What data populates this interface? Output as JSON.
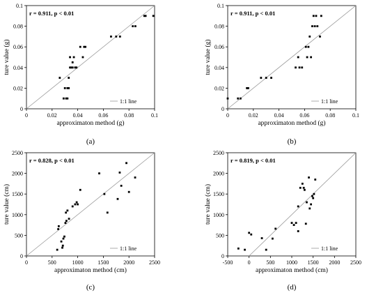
{
  "chart_data": [
    {
      "type": "scatter",
      "caption": "(a)",
      "annotation": "r = 0.911, p < 0.01",
      "legend": "1:1 line",
      "xlabel": "approximaton method (g)",
      "ylabel": "ture value (g)",
      "xlim": [
        0,
        0.1
      ],
      "ylim": [
        0,
        0.1
      ],
      "xticks": [
        "0",
        "0.02",
        "0.04",
        "0.06",
        "0.08",
        "0.1"
      ],
      "yticks": [
        "0",
        "0.02",
        "0.04",
        "0.06",
        "0.08",
        "0.1"
      ],
      "x": [
        0.026,
        0.029,
        0.03,
        0.031,
        0.032,
        0.032,
        0.033,
        0.033,
        0.034,
        0.034,
        0.035,
        0.036,
        0.036,
        0.037,
        0.038,
        0.039,
        0.042,
        0.044,
        0.045,
        0.046,
        0.066,
        0.07,
        0.073,
        0.083,
        0.085,
        0.092,
        0.093,
        0.099
      ],
      "y": [
        0.03,
        0.01,
        0.02,
        0.01,
        0.02,
        0.01,
        0.02,
        0.03,
        0.04,
        0.05,
        0.04,
        0.04,
        0.045,
        0.05,
        0.04,
        0.04,
        0.06,
        0.05,
        0.06,
        0.06,
        0.07,
        0.07,
        0.07,
        0.08,
        0.08,
        0.09,
        0.09,
        0.09
      ]
    },
    {
      "type": "scatter",
      "caption": "(b)",
      "annotation": "r = 0.911, p < 0.01",
      "legend": "1:1 line",
      "xlabel": "approximaton method (g)",
      "ylabel": "ture value (g)",
      "xlim": [
        0,
        0.1
      ],
      "ylim": [
        0,
        0.1
      ],
      "xticks": [
        "0",
        "0.02",
        "0.04",
        "0.06",
        "0.08",
        "0.1"
      ],
      "yticks": [
        "0",
        "0.02",
        "0.04",
        "0.06",
        "0.08",
        "0.1"
      ],
      "x": [
        0.0,
        0.008,
        0.01,
        0.015,
        0.016,
        0.026,
        0.03,
        0.034,
        0.053,
        0.055,
        0.056,
        0.058,
        0.061,
        0.062,
        0.063,
        0.064,
        0.065,
        0.066,
        0.067,
        0.068,
        0.069,
        0.07,
        0.072,
        0.073
      ],
      "y": [
        0.01,
        0.01,
        0.01,
        0.02,
        0.02,
        0.03,
        0.03,
        0.03,
        0.04,
        0.05,
        0.04,
        0.04,
        0.06,
        0.05,
        0.06,
        0.07,
        0.05,
        0.08,
        0.09,
        0.08,
        0.09,
        0.08,
        0.07,
        0.09
      ]
    },
    {
      "type": "scatter",
      "caption": "(c)",
      "annotation": "r = 0.828, p < 0.01",
      "legend": "1:1 line",
      "xlabel": "approximaton method (cm)",
      "ylabel": "ture value (cm)",
      "xlim": [
        0,
        2500
      ],
      "ylim": [
        0,
        2500
      ],
      "xticks": [
        "0",
        "500",
        "1000",
        "1500",
        "2000",
        "2500"
      ],
      "yticks": [
        "0",
        "500",
        "1000",
        "1500",
        "2000",
        "2500"
      ],
      "x": [
        600,
        620,
        630,
        680,
        700,
        710,
        720,
        740,
        760,
        770,
        780,
        800,
        830,
        900,
        950,
        980,
        1000,
        1050,
        1420,
        1520,
        1580,
        1780,
        1820,
        1850,
        1950,
        2000,
        2120
      ],
      "y": [
        150,
        650,
        720,
        350,
        200,
        250,
        420,
        470,
        800,
        1050,
        850,
        1100,
        900,
        1200,
        1250,
        1300,
        1250,
        1600,
        2000,
        1500,
        1050,
        1380,
        2020,
        1700,
        2250,
        1550,
        1900
      ]
    },
    {
      "type": "scatter",
      "caption": "(d)",
      "annotation": "r = 0.819, p < 0.01",
      "legend": "1:1 line",
      "xlabel": "approximaton method (cm)",
      "ylabel": "ture value (cm)",
      "xlim": [
        -500,
        2500
      ],
      "ylim": [
        0,
        2500
      ],
      "xticks": [
        "-500",
        "0",
        "500",
        "1000",
        "1500",
        "2000",
        "2500"
      ],
      "yticks": [
        "0",
        "500",
        "1000",
        "1500",
        "2000",
        "2500"
      ],
      "x": [
        -250,
        -100,
        0,
        50,
        300,
        400,
        550,
        620,
        1000,
        1050,
        1100,
        1150,
        1150,
        1200,
        1250,
        1280,
        1300,
        1330,
        1350,
        1400,
        1420,
        1450,
        1480,
        1500,
        1520,
        1550
      ],
      "y": [
        180,
        150,
        560,
        520,
        430,
        150,
        420,
        660,
        800,
        750,
        800,
        600,
        1200,
        1650,
        1750,
        1650,
        1600,
        780,
        1300,
        1900,
        1150,
        1250,
        1450,
        1400,
        1500,
        1850
      ]
    }
  ]
}
